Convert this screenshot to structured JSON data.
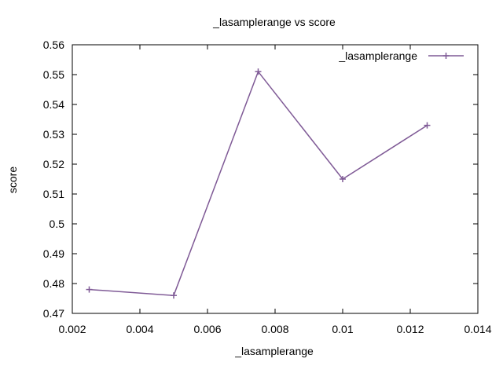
{
  "chart_data": {
    "type": "line",
    "title": "_lasamplerange vs score",
    "xlabel": "_lasamplerange",
    "ylabel": "score",
    "xlim": [
      0.002,
      0.014
    ],
    "ylim": [
      0.47,
      0.56
    ],
    "x_ticks": [
      "0.002",
      "0.004",
      "0.006",
      "0.008",
      "0.01",
      "0.012",
      "0.014"
    ],
    "y_ticks": [
      "0.47",
      "0.48",
      "0.49",
      "0.5",
      "0.51",
      "0.52",
      "0.53",
      "0.54",
      "0.55",
      "0.56"
    ],
    "grid": false,
    "legend_position": "top-right",
    "series": [
      {
        "name": "_lasamplerange",
        "color": "#7f5a96",
        "marker": "plus",
        "x": [
          0.0025,
          0.005,
          0.0075,
          0.01,
          0.0125
        ],
        "y": [
          0.478,
          0.476,
          0.551,
          0.515,
          0.533
        ]
      }
    ]
  }
}
